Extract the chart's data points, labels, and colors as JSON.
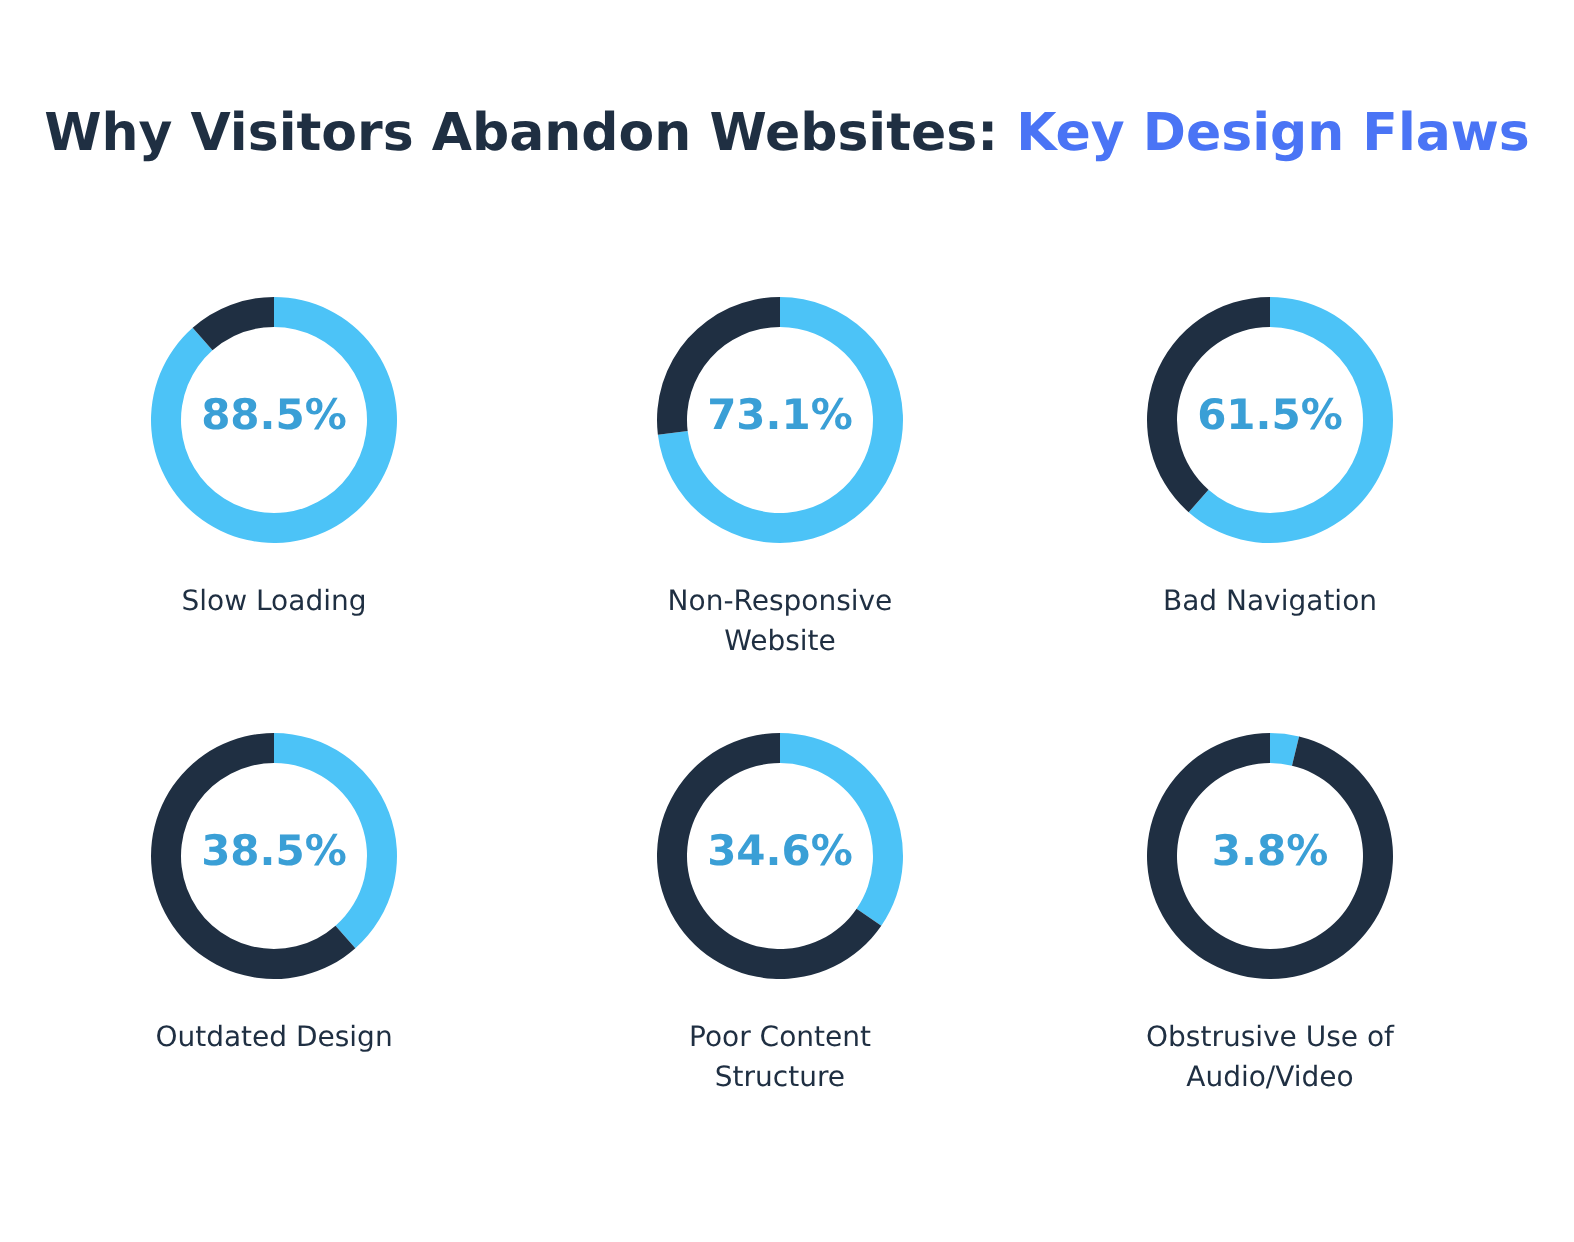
{
  "chart_data": [
    {
      "type": "other",
      "title": "Why Visitors Abandon Websites: Key Design Flaws"
    },
    {
      "type": "donut",
      "title": "Slow Loading",
      "categories": [
        null,
        null
      ],
      "values": [
        88.5,
        11.5
      ],
      "colors": [
        "#4cc3f7",
        "#1f2f42"
      ],
      "annotations": [
        "88.5%"
      ]
    },
    {
      "type": "donut",
      "title": "Non-Responsive Website",
      "categories": [
        null,
        null
      ],
      "values": [
        73.1,
        26.9
      ],
      "colors": [
        "#4cc3f7",
        "#1f2f42"
      ],
      "annotations": [
        "73.1%"
      ]
    },
    {
      "type": "donut",
      "title": "Bad Navigation",
      "categories": [
        null,
        null
      ],
      "values": [
        61.5,
        38.5
      ],
      "colors": [
        "#4cc3f7",
        "#1f2f42"
      ],
      "annotations": [
        "61.5%"
      ]
    },
    {
      "type": "donut",
      "title": "Outdated Design",
      "categories": [
        null,
        null
      ],
      "values": [
        38.5,
        61.5
      ],
      "colors": [
        "#4cc3f7",
        "#1f2f42"
      ],
      "annotations": [
        "38.5%"
      ]
    },
    {
      "type": "donut",
      "title": "Poor Content Structure",
      "categories": [
        null,
        null
      ],
      "values": [
        34.6,
        65.4
      ],
      "colors": [
        "#4cc3f7",
        "#1f2f42"
      ],
      "annotations": [
        "34.6%"
      ]
    },
    {
      "type": "donut",
      "title": "Obstrusive Use of Audio/Video",
      "categories": [
        null,
        null
      ],
      "values": [
        3.8,
        96.2
      ],
      "colors": [
        "#4cc3f7",
        "#1f2f42"
      ],
      "annotations": [
        "3.8%"
      ]
    }
  ]
}
